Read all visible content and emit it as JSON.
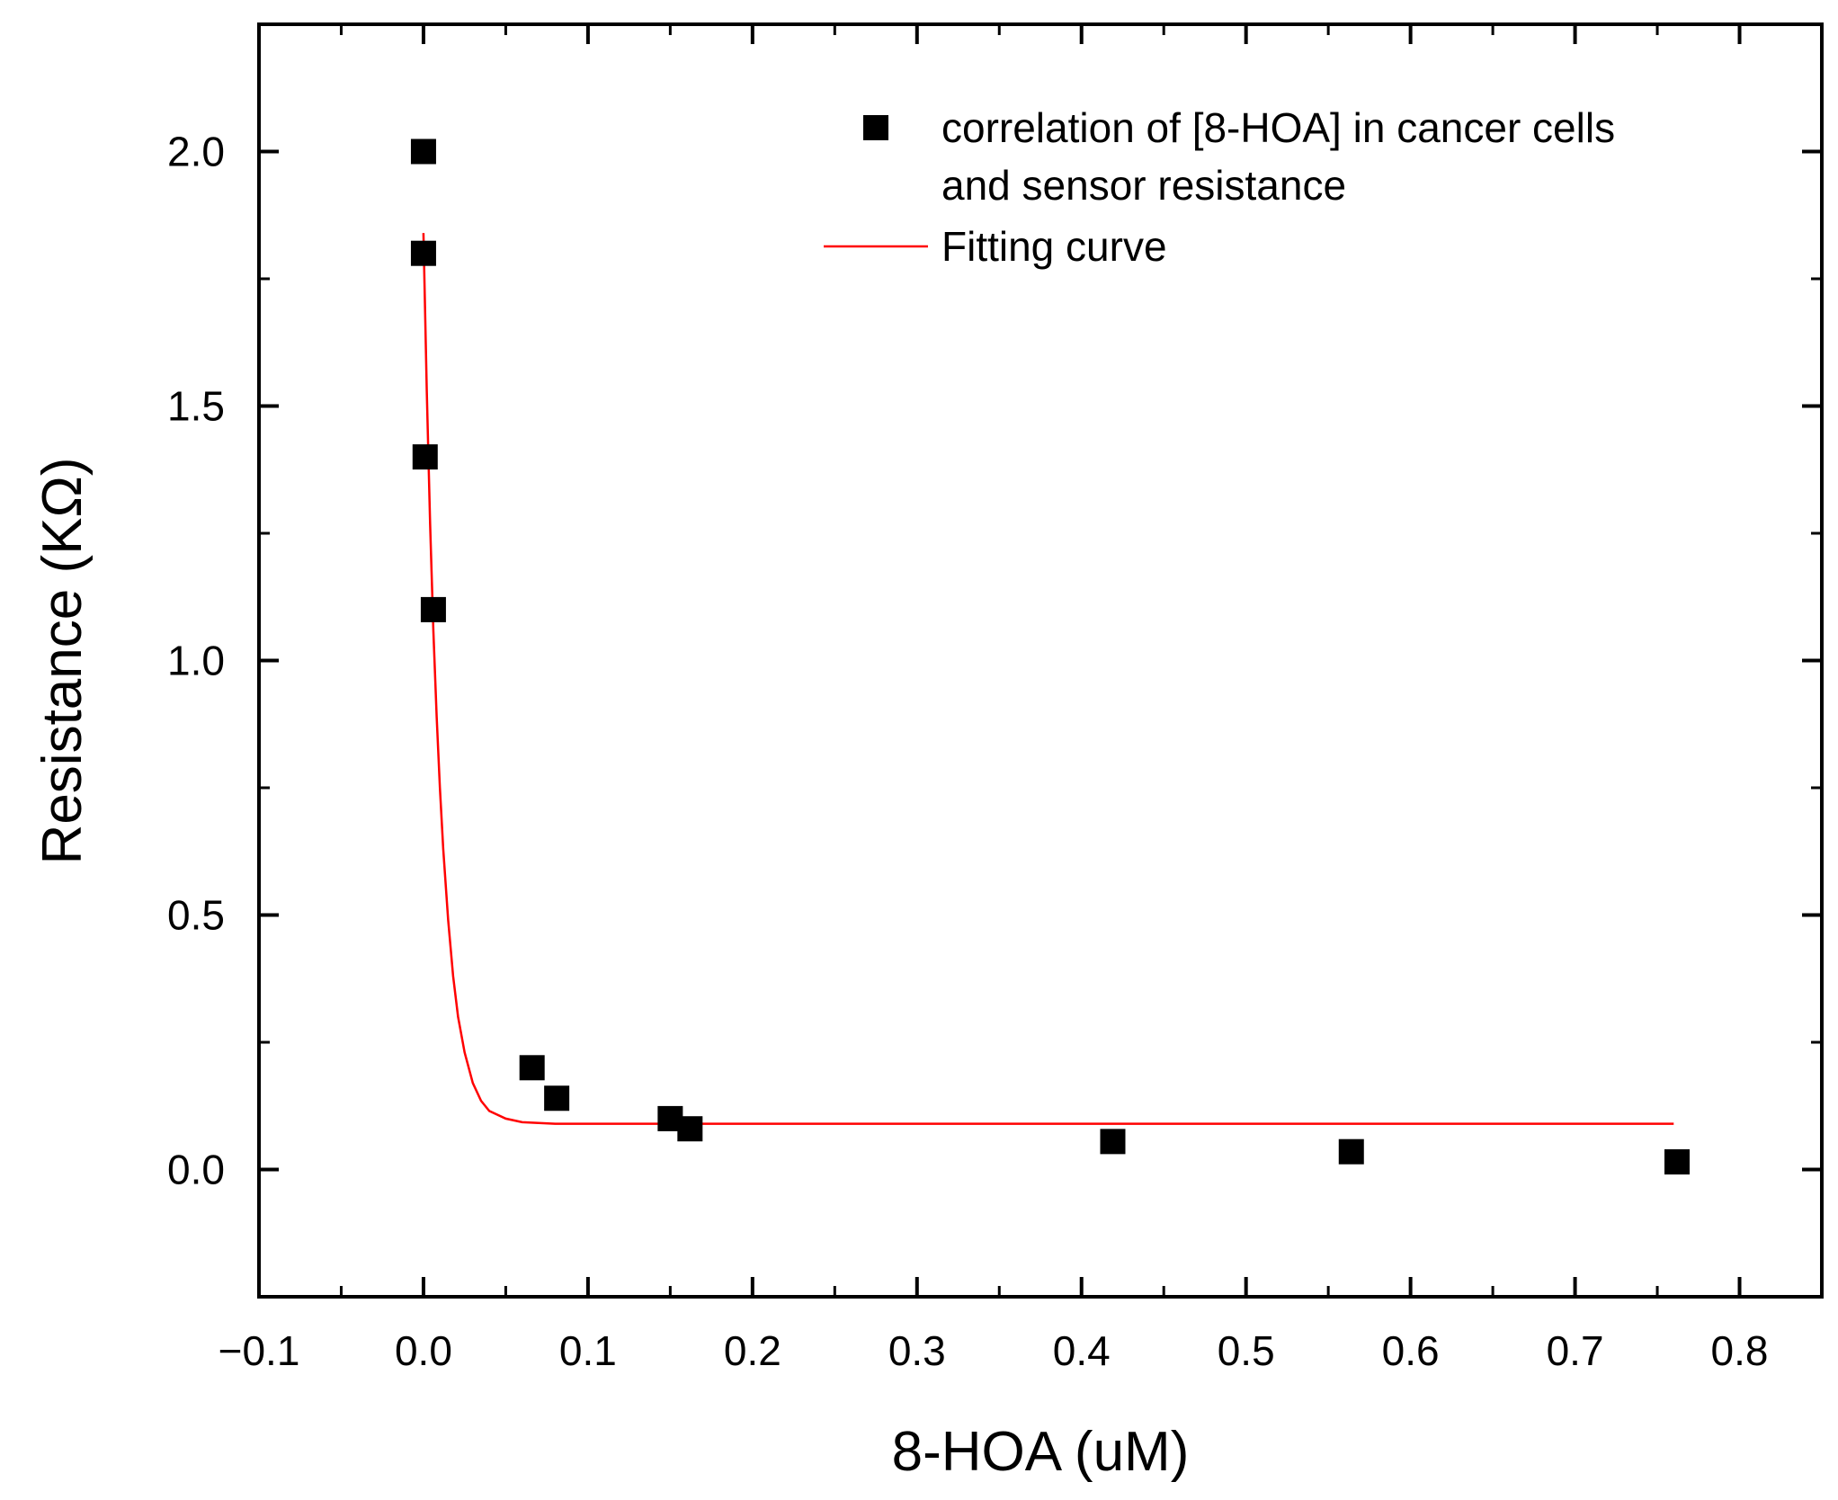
{
  "chart_data": {
    "type": "scatter",
    "title": "",
    "xlabel": "8-HOA (uM)",
    "ylabel": "Resistance (KΩ)",
    "xlim": [
      -0.1,
      0.85
    ],
    "ylim": [
      -0.25,
      2.25
    ],
    "xticks": [
      -0.1,
      0.0,
      0.1,
      0.2,
      0.3,
      0.4,
      0.5,
      0.6,
      0.7,
      0.8
    ],
    "xtick_labels": [
      "−0.1",
      "0.0",
      "0.1",
      "0.2",
      "0.3",
      "0.4",
      "0.5",
      "0.6",
      "0.7",
      "0.8"
    ],
    "yticks": [
      0.0,
      0.5,
      1.0,
      1.5,
      2.0
    ],
    "ytick_labels": [
      "0.0",
      "0.5",
      "1.0",
      "1.5",
      "2.0"
    ],
    "grid": false,
    "legend_position": "top-right",
    "series": [
      {
        "name": "correlation of [8-HOA] in cancer cells",
        "name_line2": "and sensor resistance",
        "kind": "scatter",
        "marker": "square",
        "color": "#000000",
        "x": [
          0.0,
          0.0,
          0.001,
          0.006,
          0.066,
          0.081,
          0.15,
          0.162,
          0.419,
          0.564,
          0.762
        ],
        "y": [
          2.0,
          1.8,
          1.4,
          1.1,
          0.2,
          0.14,
          0.1,
          0.08,
          0.055,
          0.035,
          0.015
        ]
      },
      {
        "name": "Fitting curve",
        "kind": "line",
        "color": "#ff0000",
        "x": [
          0.0,
          0.002,
          0.004,
          0.006,
          0.008,
          0.01,
          0.012,
          0.015,
          0.018,
          0.021,
          0.025,
          0.03,
          0.035,
          0.04,
          0.05,
          0.06,
          0.08,
          0.1,
          0.2,
          0.4,
          0.6,
          0.76
        ],
        "y": [
          1.84,
          1.53,
          1.27,
          1.06,
          0.89,
          0.75,
          0.63,
          0.49,
          0.38,
          0.3,
          0.23,
          0.17,
          0.135,
          0.115,
          0.1,
          0.093,
          0.09,
          0.09,
          0.09,
          0.09,
          0.09,
          0.09
        ]
      }
    ]
  }
}
